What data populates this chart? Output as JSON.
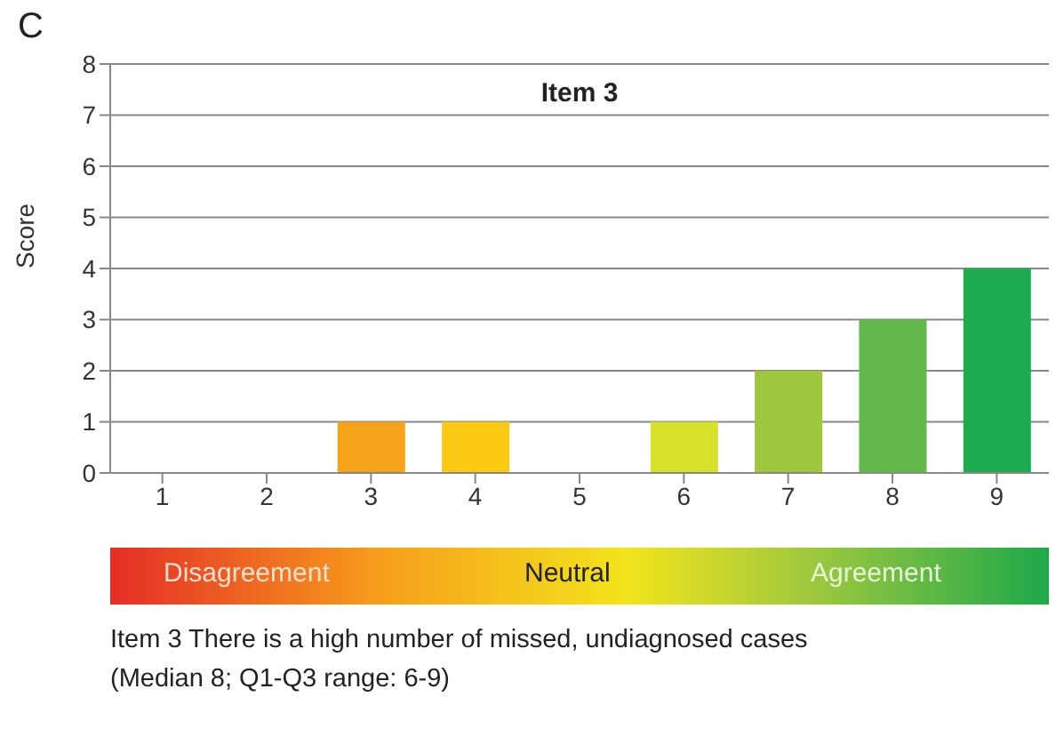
{
  "chart_data": {
    "type": "bar",
    "title": "Item 3",
    "ylabel": "Score",
    "categories": [
      "1",
      "2",
      "3",
      "4",
      "5",
      "6",
      "7",
      "8",
      "9"
    ],
    "values": [
      0,
      0,
      1,
      1,
      0,
      1,
      2,
      3,
      4
    ],
    "colors": [
      "#e8312a",
      "#f06a2a",
      "#f7a21b",
      "#fcc912",
      "#f0e020",
      "#d6e12a",
      "#9dc83e",
      "#62b84a",
      "#1eaa4e"
    ],
    "ylim": [
      0,
      8
    ],
    "yticks": [
      0,
      1,
      2,
      3,
      4,
      5,
      6,
      7,
      8
    ],
    "grid": "y",
    "legend": false,
    "annotations": [
      "C",
      "Disagreement",
      "Neutral",
      "Agreement",
      "Item 3 There is a high number of missed, undiagnosed cases",
      "(Median 8; Q1-Q3 range: 6-9)"
    ]
  }
}
